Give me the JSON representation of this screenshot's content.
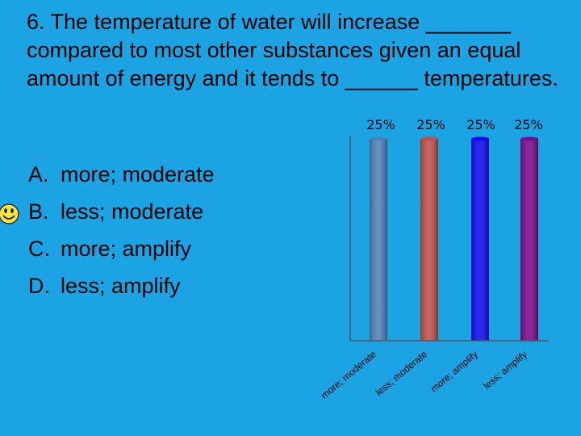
{
  "question": {
    "text": "6.  The temperature of water will increase _______ compared to most other substances given an equal amount of energy and it tends to ______ temperatures."
  },
  "options": [
    {
      "letter": "A.",
      "text": "more; moderate"
    },
    {
      "letter": "B.",
      "text": "less; moderate"
    },
    {
      "letter": "C.",
      "text": "more; amplify"
    },
    {
      "letter": "D.",
      "text": "less; amplify"
    }
  ],
  "correct_marker": {
    "icon": "smiley-face-icon",
    "option": "B.",
    "color": "#f5e642"
  },
  "chart_data": {
    "type": "bar",
    "categories": [
      "more; moderate",
      "less; moderate",
      "more; amplify",
      "less; amplify"
    ],
    "values": [
      25,
      25,
      25,
      25
    ],
    "value_labels": [
      "25%",
      "25%",
      "25%",
      "25%"
    ],
    "colors": [
      "#4f81bd",
      "#c0504d",
      "#0a0af5",
      "#7b0a8e"
    ],
    "ylim": [
      0,
      25
    ],
    "grid": false
  }
}
